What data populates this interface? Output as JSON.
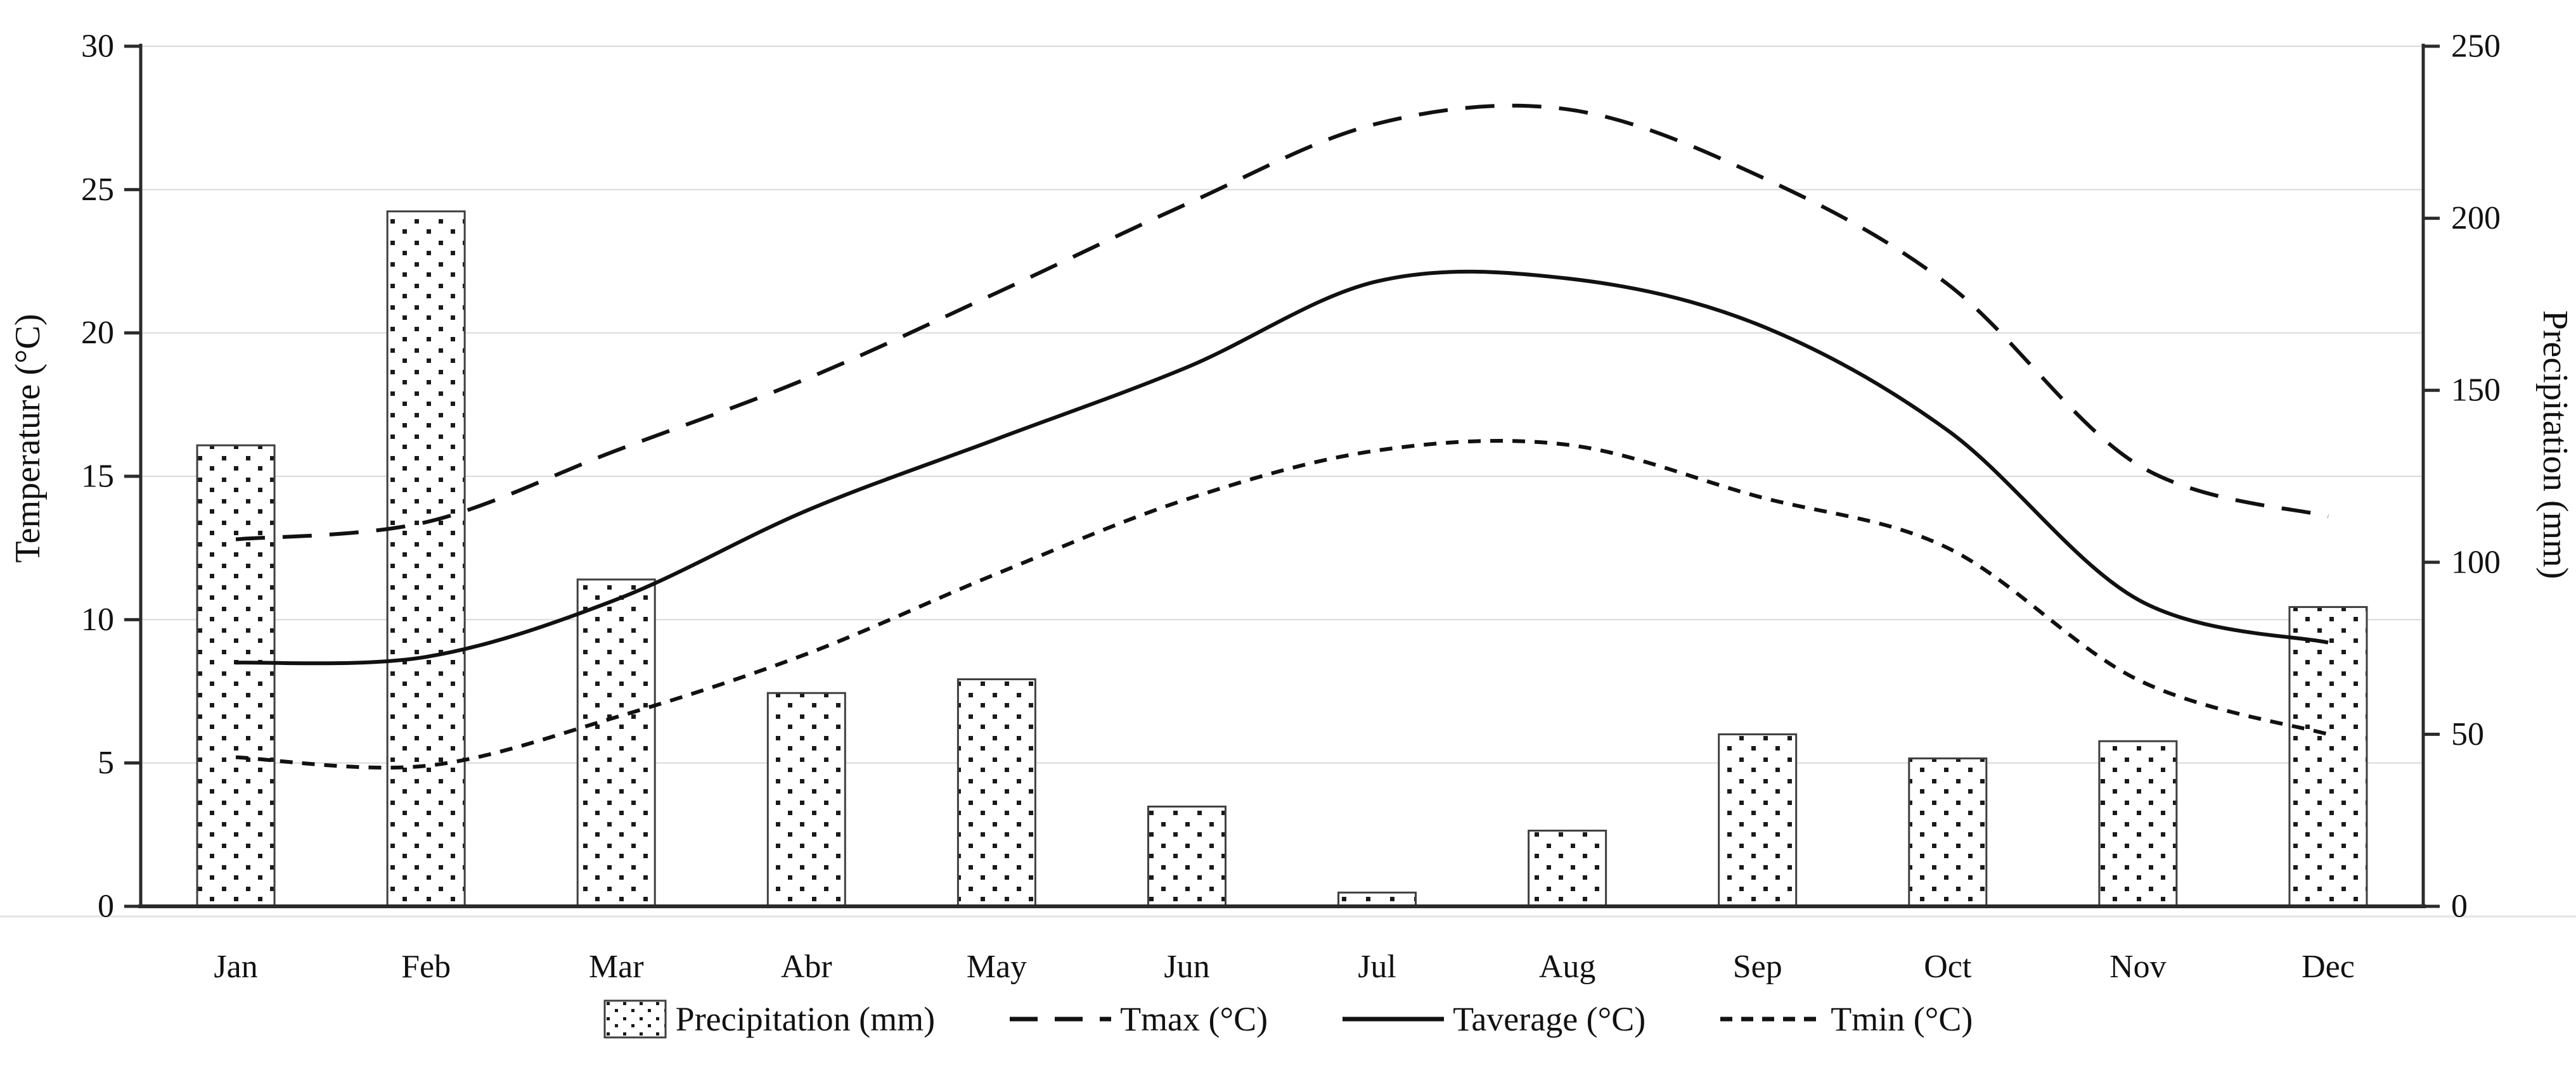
{
  "chart_data": {
    "type": "bar+line combo (climograph)",
    "title": "",
    "categories": [
      "Jan",
      "Feb",
      "Mar",
      "Abr",
      "May",
      "Jun",
      "Jul",
      "Aug",
      "Sep",
      "Oct",
      "Nov",
      "Dec"
    ],
    "bar_series": {
      "name": "Precipitation (mm)",
      "axis": "right",
      "values_mm": [
        134,
        202,
        95,
        62,
        66,
        29,
        4,
        22,
        50,
        43,
        48,
        87
      ]
    },
    "line_series": [
      {
        "name": "Tmax (°C)",
        "style": "long-dash",
        "values_c": [
          12.8,
          13.4,
          15.9,
          18.4,
          21.4,
          24.5,
          27.3,
          27.8,
          25.5,
          21.7,
          15.4,
          13.6
        ]
      },
      {
        "name": "Taverage (°C)",
        "style": "solid",
        "values_c": [
          8.5,
          8.7,
          10.7,
          13.8,
          16.3,
          18.8,
          21.8,
          21.9,
          20.3,
          16.6,
          10.7,
          9.2
        ]
      },
      {
        "name": "Tmin (°C)",
        "style": "short-dash",
        "values_c": [
          5.2,
          4.9,
          6.6,
          8.8,
          11.6,
          14.2,
          15.9,
          16.1,
          14.3,
          12.5,
          7.9,
          6.0
        ]
      }
    ],
    "left_axis": {
      "title": "Temperature (°C)",
      "min": 0,
      "max": 30,
      "step": 5,
      "tick_labels": [
        "0",
        "5",
        "10",
        "15",
        "20",
        "25",
        "30"
      ]
    },
    "right_axis": {
      "title": "Precipitation (mm)",
      "min": 0,
      "max": 250,
      "step": 50,
      "tick_labels": [
        "0",
        "50",
        "100",
        "150",
        "200",
        "250"
      ]
    },
    "legend": [
      {
        "label": "Precipitation (mm)",
        "swatch": "dotted-bar"
      },
      {
        "label": "Tmax (°C)",
        "swatch": "long-dash-line"
      },
      {
        "label": "Taverage (°C)",
        "swatch": "solid-line"
      },
      {
        "label": "Tmin (°C)",
        "swatch": "short-dash-line"
      }
    ],
    "layout_hints": {
      "grid": "horizontal gridlines every 5 °C, light gray",
      "legend_position": "bottom center",
      "bars_on_baseline": true
    },
    "colors": {
      "line": "#111111",
      "text": "#111111",
      "gridline": "#d9d9d9",
      "axis": "#2b2b2b",
      "bar_border": "#3f3f3f",
      "bar_fill": "#ffffff",
      "bar_dot": "#1a1a1a",
      "background": "#ffffff"
    }
  }
}
